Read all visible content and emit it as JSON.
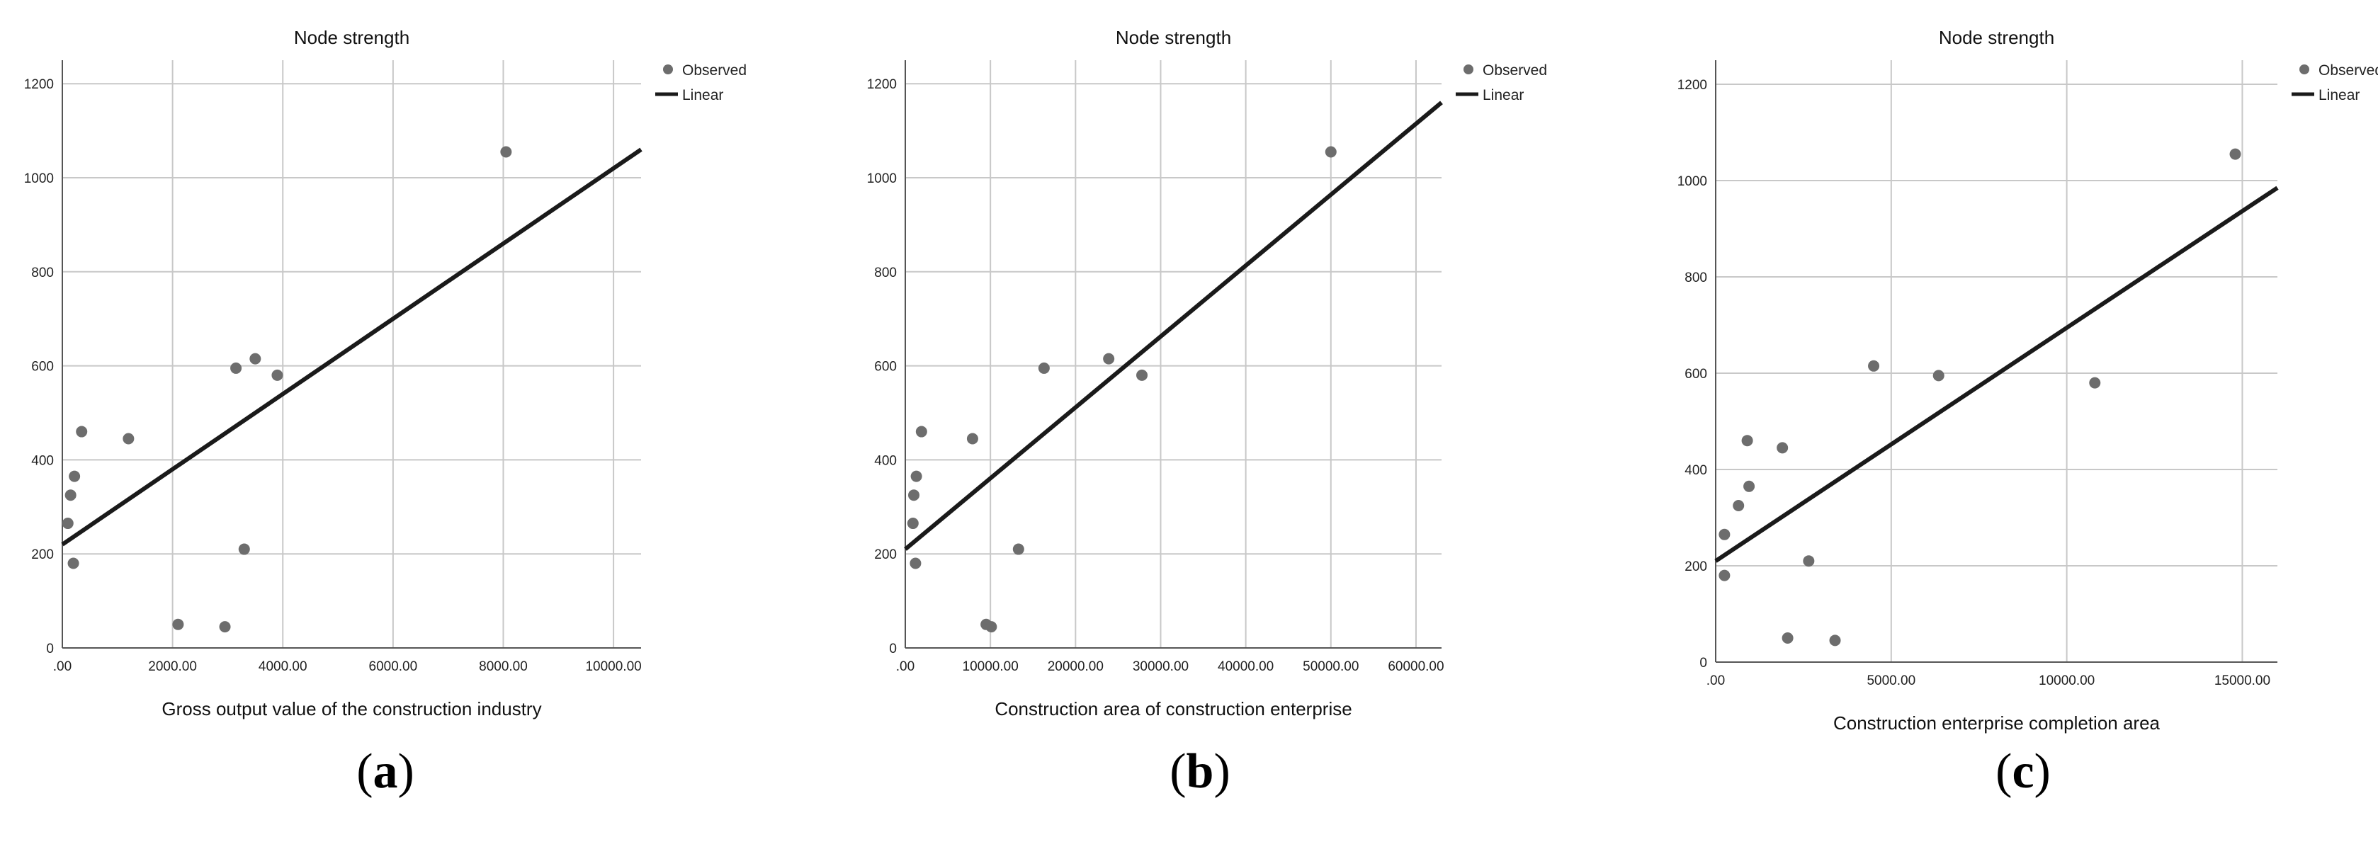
{
  "chart_data": [
    {
      "type": "scatter",
      "title": "Node strength",
      "xlabel": "Gross output value of the construction industry",
      "ylabel": "",
      "xlim": [
        0,
        10500
      ],
      "ylim": [
        0,
        1250
      ],
      "x_ticks": [
        0,
        2000,
        4000,
        6000,
        8000,
        10000
      ],
      "x_tick_labels": [
        ".00",
        "2000.00",
        "4000.00",
        "6000.00",
        "8000.00",
        "10000.00"
      ],
      "y_ticks": [
        0,
        200,
        400,
        600,
        800,
        1000,
        1200
      ],
      "y_tick_labels": [
        "0",
        "200",
        "400",
        "600",
        "800",
        "1000",
        "1200"
      ],
      "grid": true,
      "legend": [
        "Observed",
        "Linear"
      ],
      "legend_position": "top-right",
      "series": [
        {
          "name": "Observed",
          "kind": "points",
          "points": [
            [
              100,
              265
            ],
            [
              150,
              325
            ],
            [
              200,
              180
            ],
            [
              220,
              365
            ],
            [
              350,
              460
            ],
            [
              1200,
              445
            ],
            [
              2100,
              50
            ],
            [
              2950,
              45
            ],
            [
              3150,
              595
            ],
            [
              3300,
              210
            ],
            [
              3500,
              615
            ],
            [
              3900,
              580
            ],
            [
              8050,
              1055
            ]
          ]
        },
        {
          "name": "Linear",
          "kind": "line",
          "points": [
            [
              0,
              220
            ],
            [
              10500,
              1060
            ]
          ]
        }
      ],
      "panel_label": "a"
    },
    {
      "type": "scatter",
      "title": "Node strength",
      "xlabel": "Construction area of construction enterprise",
      "ylabel": "",
      "xlim": [
        0,
        63000
      ],
      "ylim": [
        0,
        1250
      ],
      "x_ticks": [
        0,
        10000,
        20000,
        30000,
        40000,
        50000,
        60000
      ],
      "x_tick_labels": [
        ".00",
        "10000.00",
        "20000.00",
        "30000.00",
        "40000.00",
        "50000.00",
        "60000.00"
      ],
      "y_ticks": [
        0,
        200,
        400,
        600,
        800,
        1000,
        1200
      ],
      "y_tick_labels": [
        "0",
        "200",
        "400",
        "600",
        "800",
        "1000",
        "1200"
      ],
      "grid": true,
      "legend": [
        "Observed",
        "Linear"
      ],
      "legend_position": "top-right",
      "series": [
        {
          "name": "Observed",
          "kind": "points",
          "points": [
            [
              900,
              265
            ],
            [
              1000,
              325
            ],
            [
              1200,
              180
            ],
            [
              1300,
              365
            ],
            [
              1900,
              460
            ],
            [
              7900,
              445
            ],
            [
              9500,
              50
            ],
            [
              10100,
              45
            ],
            [
              13300,
              210
            ],
            [
              16300,
              595
            ],
            [
              23900,
              615
            ],
            [
              27800,
              580
            ],
            [
              50000,
              1055
            ]
          ]
        },
        {
          "name": "Linear",
          "kind": "line",
          "points": [
            [
              0,
              210
            ],
            [
              63000,
              1160
            ]
          ]
        }
      ],
      "panel_label": "b"
    },
    {
      "type": "scatter",
      "title": "Node strength",
      "xlabel": "Construction enterprise completion area",
      "ylabel": "",
      "xlim": [
        0,
        16000
      ],
      "ylim": [
        0,
        1250
      ],
      "x_ticks": [
        0,
        5000,
        10000,
        15000
      ],
      "x_tick_labels": [
        ".00",
        "5000.00",
        "10000.00",
        "15000.00"
      ],
      "y_ticks": [
        0,
        200,
        400,
        600,
        800,
        1000,
        1200
      ],
      "y_tick_labels": [
        "0",
        "200",
        "400",
        "600",
        "800",
        "1000",
        "1200"
      ],
      "grid": true,
      "legend": [
        "Observed",
        "Linear"
      ],
      "legend_position": "top-right",
      "series": [
        {
          "name": "Observed",
          "kind": "points",
          "points": [
            [
              250,
              180
            ],
            [
              250,
              265
            ],
            [
              650,
              325
            ],
            [
              900,
              460
            ],
            [
              950,
              365
            ],
            [
              1900,
              445
            ],
            [
              2050,
              50
            ],
            [
              2650,
              210
            ],
            [
              3400,
              45
            ],
            [
              4500,
              615
            ],
            [
              6350,
              595
            ],
            [
              10800,
              580
            ],
            [
              14800,
              1055
            ]
          ]
        },
        {
          "name": "Linear",
          "kind": "line",
          "points": [
            [
              0,
              210
            ],
            [
              16000,
              985
            ]
          ]
        }
      ],
      "panel_label": "c"
    }
  ]
}
